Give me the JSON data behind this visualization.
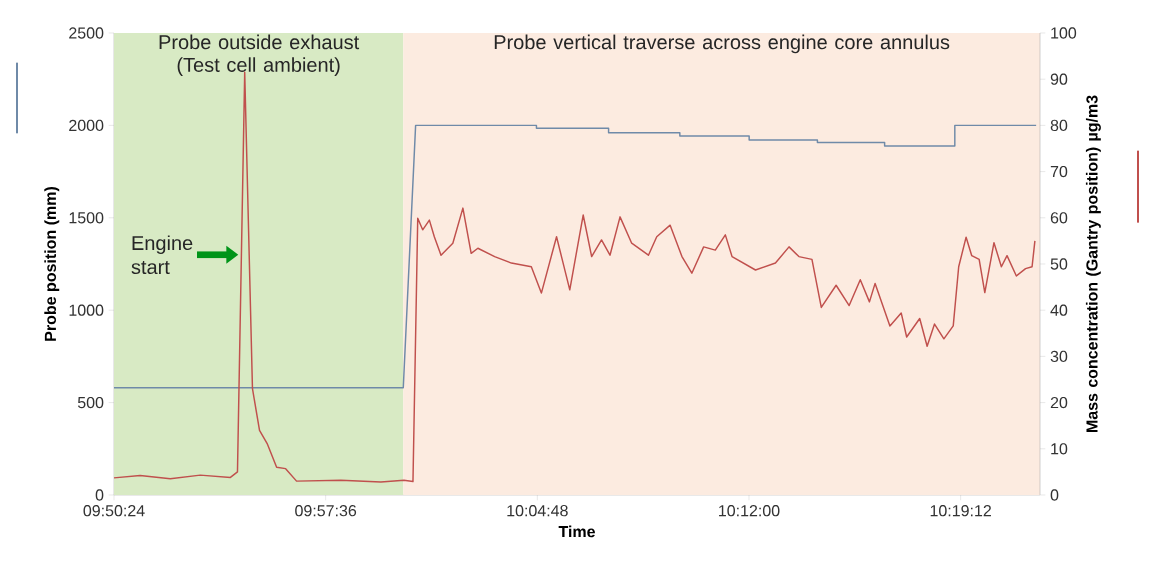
{
  "chart_data": {
    "type": "line",
    "xlabel": "Time",
    "ylabel": "Probe position (mm)",
    "y2label": "Mass concentration (Gantry position) µg/m3",
    "marker": "none",
    "xlim": [
      9.84,
      10.365
    ],
    "xticks": [
      {
        "value": 9.84,
        "label": "09:50:24"
      },
      {
        "value": 9.96,
        "label": "09:57:36"
      },
      {
        "value": 10.08,
        "label": "10:04:48"
      },
      {
        "value": 10.2,
        "label": "10:12:00"
      },
      {
        "value": 10.32,
        "label": "10:19:12"
      }
    ],
    "ylim": [
      0,
      2500
    ],
    "yticks": [
      0,
      500,
      1000,
      1500,
      2000,
      2500
    ],
    "y2lim": [
      0,
      100
    ],
    "y2ticks": [
      0,
      10,
      20,
      30,
      40,
      50,
      60,
      70,
      80,
      90,
      100
    ],
    "bands": [
      {
        "axis": "x",
        "from": 9.84,
        "to": 10.004,
        "label": "Probe outside exhaust (Test cell ambient)",
        "color": "#d8eac4"
      },
      {
        "axis": "x",
        "from": 10.004,
        "to": 10.365,
        "label": "Probe vertical traverse across engine core annulus",
        "color": "#fcebe0"
      }
    ],
    "annotations": [
      {
        "text": "Engine start",
        "x": 9.912,
        "y": 1300
      }
    ],
    "series": [
      {
        "color": "#6f8aa8",
        "x": [
          9.84,
          10.004,
          10.011,
          10.0795,
          10.0795,
          10.1204,
          10.1204,
          10.1608,
          10.1608,
          10.2001,
          10.2001,
          10.2388,
          10.2388,
          10.2769,
          10.2769,
          10.3167,
          10.3167,
          10.3628
        ],
        "values": [
          580,
          580,
          2000,
          2000,
          1984,
          1984,
          1960,
          1960,
          1943,
          1943,
          1921,
          1921,
          1907,
          1907,
          1888,
          1888,
          2000,
          2000
        ]
      },
      {
        "color": "#c0504d",
        "axis": "y2",
        "x": [
          9.84,
          9.8548,
          9.8719,
          9.8889,
          9.906,
          9.91,
          9.9141,
          9.9185,
          9.9225,
          9.927,
          9.9322,
          9.9373,
          9.9435,
          9.9686,
          9.9913,
          10.0044,
          10.0095,
          10.0122,
          10.015,
          10.0188,
          10.0216,
          10.0254,
          10.0321,
          10.0378,
          10.0425,
          10.0463,
          10.0558,
          10.0653,
          10.0766,
          10.0823,
          10.0909,
          10.0937,
          10.0984,
          10.106,
          10.1108,
          10.1164,
          10.1212,
          10.1269,
          10.1335,
          10.143,
          10.1477,
          10.1553,
          10.162,
          10.1676,
          10.1743,
          10.1809,
          10.1866,
          10.1904,
          10.2037,
          10.215,
          10.2227,
          10.2283,
          10.2357,
          10.241,
          10.2494,
          10.2568,
          10.2631,
          10.2683,
          10.2715,
          10.2799,
          10.2863,
          10.2894,
          10.2968,
          10.301,
          10.3052,
          10.3105,
          10.3158,
          10.3189,
          10.3231,
          10.3263,
          10.3305,
          10.3337,
          10.3389,
          10.3431,
          10.3463,
          10.3516,
          10.3568,
          10.3605,
          10.3621
        ],
        "values": [
          3.7,
          4.2,
          3.5,
          4.3,
          3.8,
          5,
          91.5,
          23,
          14,
          11,
          6,
          5.7,
          3,
          3.2,
          2.8,
          3.2,
          2.9,
          59.9,
          57.4,
          59.5,
          55.9,
          51.9,
          54.5,
          62.1,
          52.3,
          53.4,
          51.6,
          50.2,
          49.4,
          43.7,
          55.9,
          51.6,
          44.4,
          60.6,
          51.6,
          55.2,
          51.9,
          60.2,
          54.5,
          51.9,
          55.9,
          58.4,
          51.6,
          48.0,
          53.7,
          53.0,
          56.3,
          51.6,
          48.7,
          50.2,
          53.7,
          51.6,
          51,
          40.6,
          45.4,
          41,
          46.6,
          41.8,
          45.8,
          36.6,
          39.4,
          34.2,
          38.2,
          32.2,
          37,
          33.8,
          36.6,
          49.4,
          55.8,
          51.8,
          51,
          43.8,
          54.6,
          49.4,
          51.8,
          47.4,
          49,
          49.4,
          55
        ]
      }
    ]
  }
}
